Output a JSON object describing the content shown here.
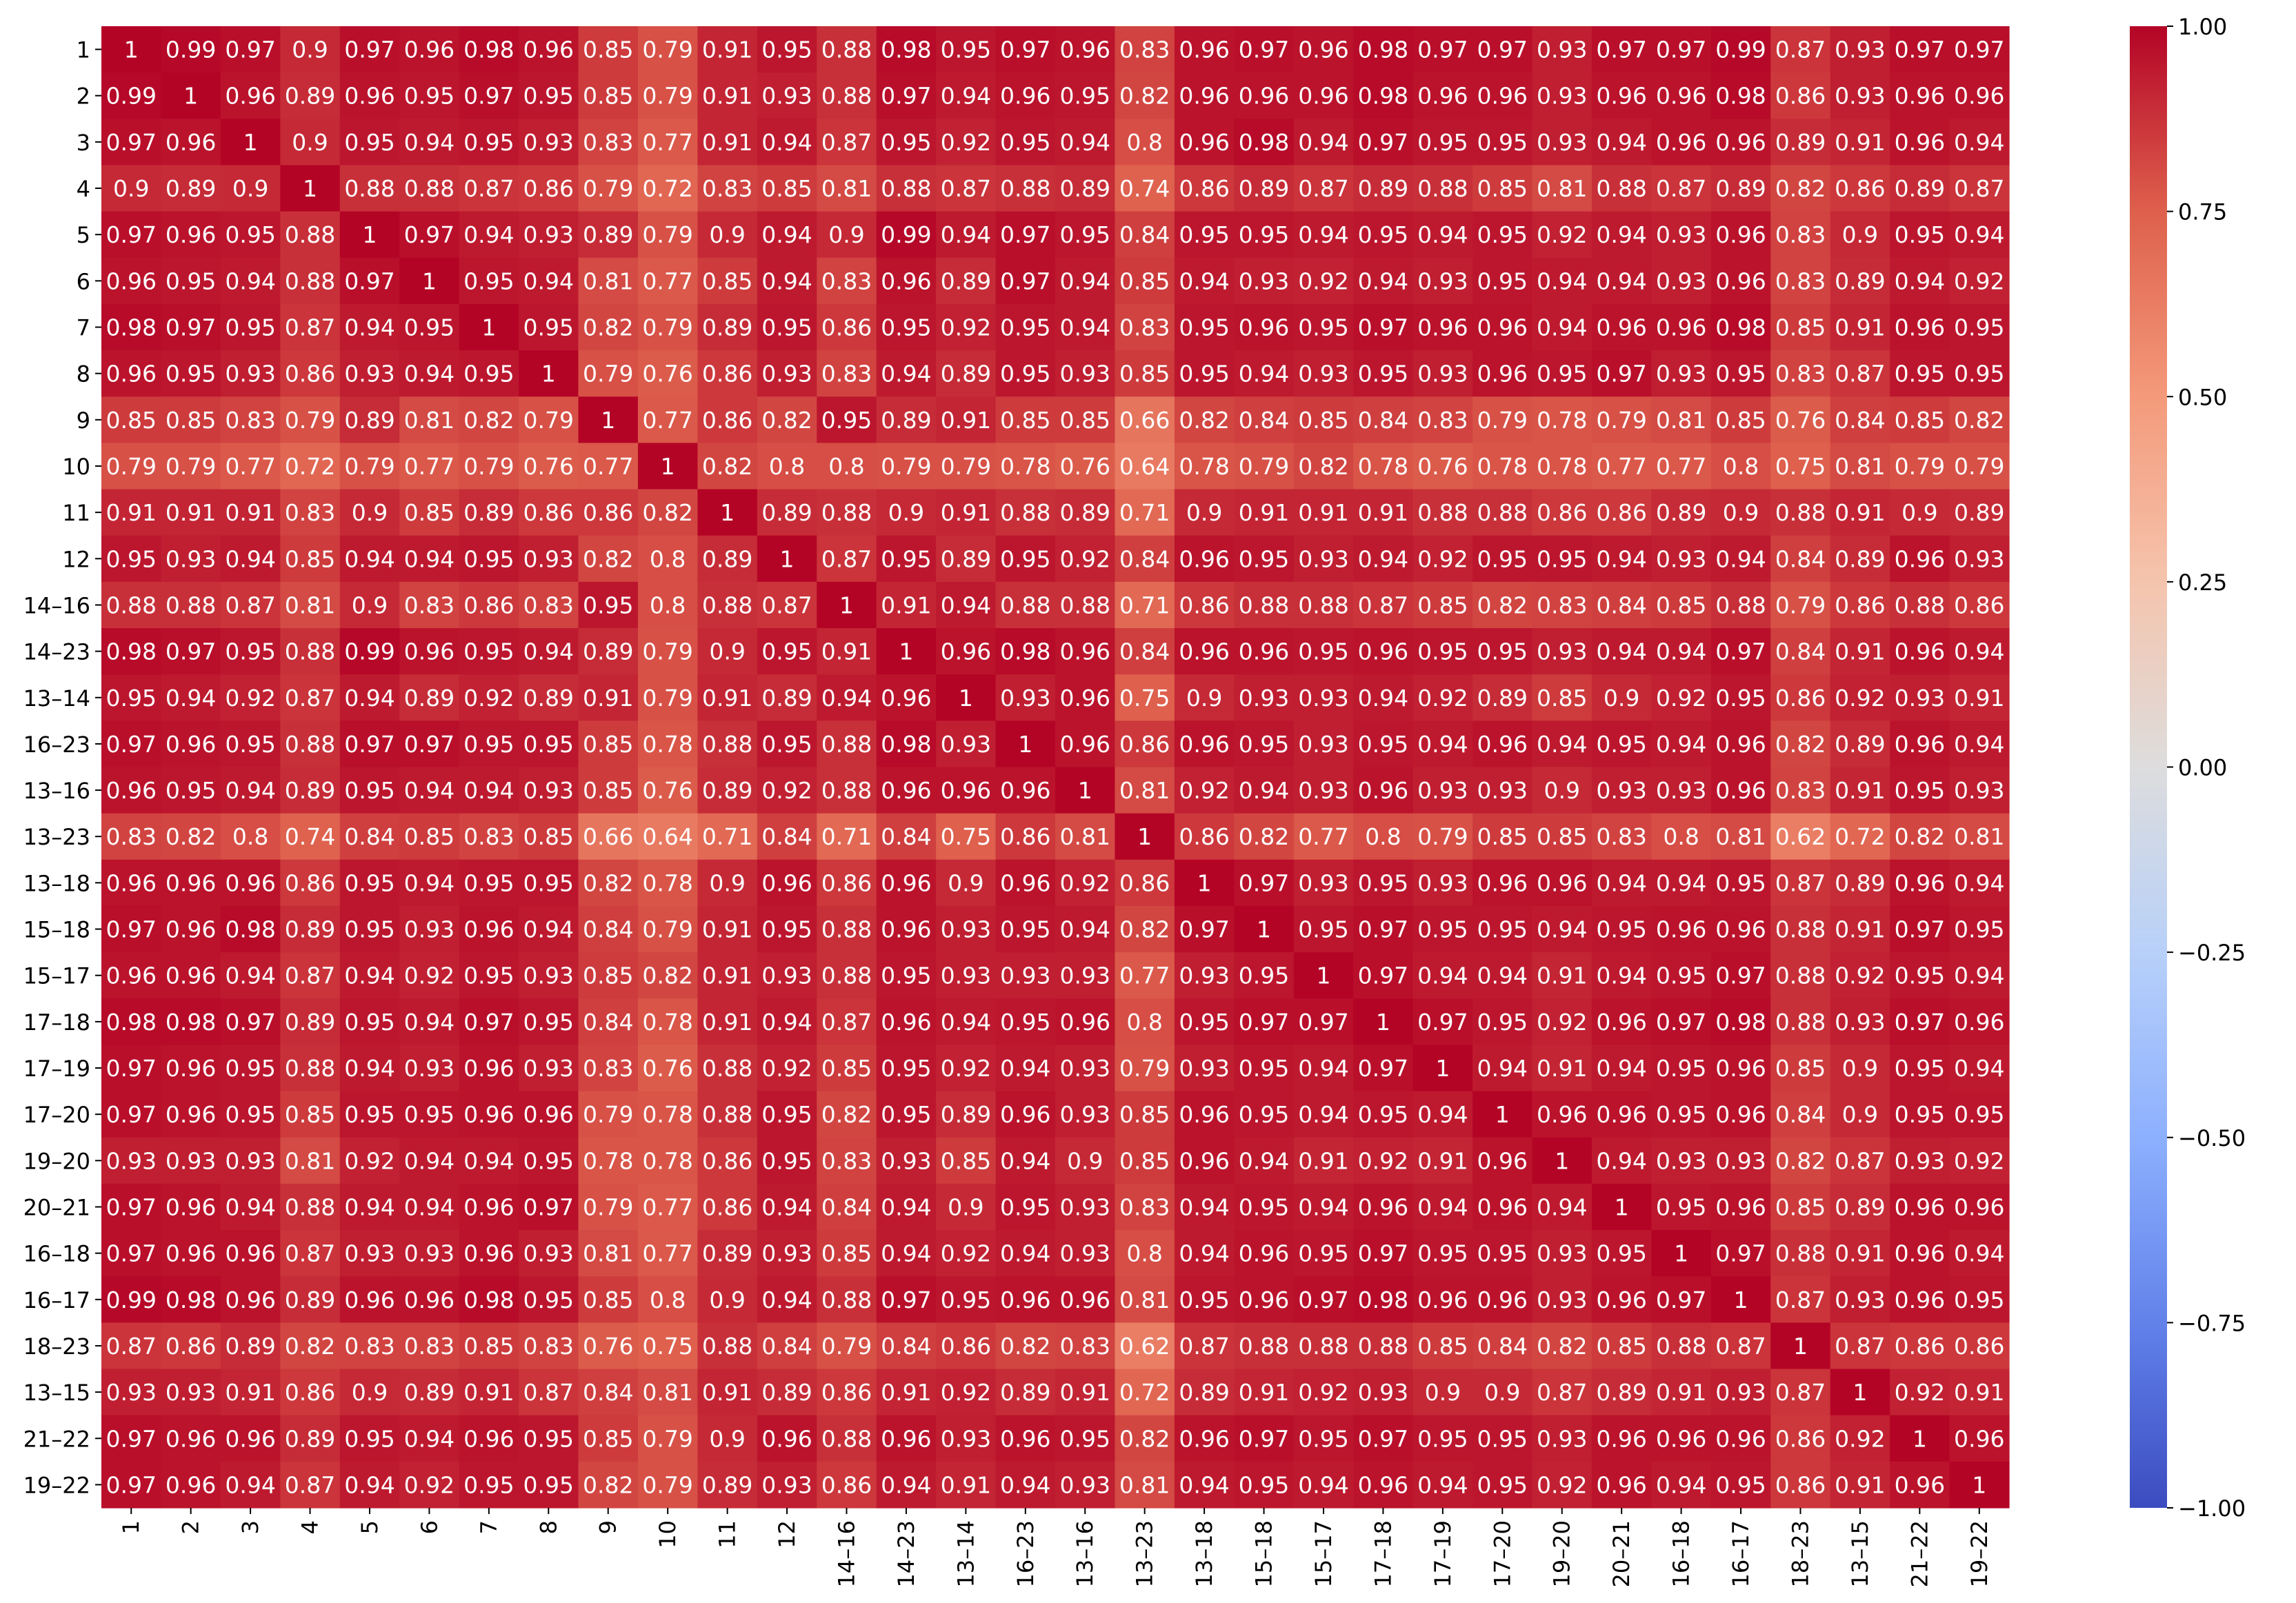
{
  "chart_data": {
    "type": "heatmap",
    "title": "",
    "xlabel": "",
    "ylabel": "",
    "colormap": "coolwarm",
    "vmin": -1,
    "vmax": 1,
    "colorbar_ticks": [
      "1.00",
      "0.75",
      "0.50",
      "0.25",
      "0.00",
      "−0.25",
      "−0.50",
      "−0.75",
      "−1.00"
    ],
    "colorbar_tick_values": [
      1,
      0.75,
      0.5,
      0.25,
      0,
      -0.25,
      -0.5,
      -0.75,
      -1
    ],
    "labels": [
      "1",
      "2",
      "3",
      "4",
      "5",
      "6",
      "7",
      "8",
      "9",
      "10",
      "11",
      "12",
      "14–16",
      "14–23",
      "13–14",
      "16–23",
      "13–16",
      "13–23",
      "13–18",
      "15–18",
      "15–17",
      "17–18",
      "17–19",
      "17–20",
      "19–20",
      "20–21",
      "16–18",
      "16–17",
      "18–23",
      "13–15",
      "21–22",
      "19–22"
    ],
    "cell_labels": [
      [
        "1",
        "0.99",
        "0.97",
        "0.9",
        "0.97",
        "0.96",
        "0.98",
        "0.96",
        "0.85",
        "0.79",
        "0.91",
        "0.95",
        "0.88",
        "0.98",
        "0.95",
        "0.97",
        "0.96",
        "0.83",
        "0.96",
        "0.97",
        "0.96",
        "0.98",
        "0.97",
        "0.97",
        "0.93",
        "0.97",
        "0.97",
        "0.99",
        "0.87",
        "0.93",
        "0.97",
        "0.97"
      ],
      [
        "0.99",
        "1",
        "0.96",
        "0.89",
        "0.96",
        "0.95",
        "0.97",
        "0.95",
        "0.85",
        "0.79",
        "0.91",
        "0.93",
        "0.88",
        "0.97",
        "0.94",
        "0.96",
        "0.95",
        "0.82",
        "0.96",
        "0.96",
        "0.96",
        "0.98",
        "0.96",
        "0.96",
        "0.93",
        "0.96",
        "0.96",
        "0.98",
        "0.86",
        "0.93",
        "0.96",
        "0.96"
      ],
      [
        "0.97",
        "0.96",
        "1",
        "0.9",
        "0.95",
        "0.94",
        "0.95",
        "0.93",
        "0.83",
        "0.77",
        "0.91",
        "0.94",
        "0.87",
        "0.95",
        "0.92",
        "0.95",
        "0.94",
        "0.8",
        "0.96",
        "0.98",
        "0.94",
        "0.97",
        "0.95",
        "0.95",
        "0.93",
        "0.94",
        "0.96",
        "0.96",
        "0.89",
        "0.91",
        "0.96",
        "0.94"
      ],
      [
        "0.9",
        "0.89",
        "0.9",
        "1",
        "0.88",
        "0.88",
        "0.87",
        "0.86",
        "0.79",
        "0.72",
        "0.83",
        "0.85",
        "0.81",
        "0.88",
        "0.87",
        "0.88",
        "0.89",
        "0.74",
        "0.86",
        "0.89",
        "0.87",
        "0.89",
        "0.88",
        "0.85",
        "0.81",
        "0.88",
        "0.87",
        "0.89",
        "0.82",
        "0.86",
        "0.89",
        "0.87"
      ],
      [
        "0.97",
        "0.96",
        "0.95",
        "0.88",
        "1",
        "0.97",
        "0.94",
        "0.93",
        "0.89",
        "0.79",
        "0.9",
        "0.94",
        "0.9",
        "0.99",
        "0.94",
        "0.97",
        "0.95",
        "0.84",
        "0.95",
        "0.95",
        "0.94",
        "0.95",
        "0.94",
        "0.95",
        "0.92",
        "0.94",
        "0.93",
        "0.96",
        "0.83",
        "0.9",
        "0.95",
        "0.94"
      ],
      [
        "0.96",
        "0.95",
        "0.94",
        "0.88",
        "0.97",
        "1",
        "0.95",
        "0.94",
        "0.81",
        "0.77",
        "0.85",
        "0.94",
        "0.83",
        "0.96",
        "0.89",
        "0.97",
        "0.94",
        "0.85",
        "0.94",
        "0.93",
        "0.92",
        "0.94",
        "0.93",
        "0.95",
        "0.94",
        "0.94",
        "0.93",
        "0.96",
        "0.83",
        "0.89",
        "0.94",
        "0.92"
      ],
      [
        "0.98",
        "0.97",
        "0.95",
        "0.87",
        "0.94",
        "0.95",
        "1",
        "0.95",
        "0.82",
        "0.79",
        "0.89",
        "0.95",
        "0.86",
        "0.95",
        "0.92",
        "0.95",
        "0.94",
        "0.83",
        "0.95",
        "0.96",
        "0.95",
        "0.97",
        "0.96",
        "0.96",
        "0.94",
        "0.96",
        "0.96",
        "0.98",
        "0.85",
        "0.91",
        "0.96",
        "0.95"
      ],
      [
        "0.96",
        "0.95",
        "0.93",
        "0.86",
        "0.93",
        "0.94",
        "0.95",
        "1",
        "0.79",
        "0.76",
        "0.86",
        "0.93",
        "0.83",
        "0.94",
        "0.89",
        "0.95",
        "0.93",
        "0.85",
        "0.95",
        "0.94",
        "0.93",
        "0.95",
        "0.93",
        "0.96",
        "0.95",
        "0.97",
        "0.93",
        "0.95",
        "0.83",
        "0.87",
        "0.95",
        "0.95"
      ],
      [
        "0.85",
        "0.85",
        "0.83",
        "0.79",
        "0.89",
        "0.81",
        "0.82",
        "0.79",
        "1",
        "0.77",
        "0.86",
        "0.82",
        "0.95",
        "0.89",
        "0.91",
        "0.85",
        "0.85",
        "0.66",
        "0.82",
        "0.84",
        "0.85",
        "0.84",
        "0.83",
        "0.79",
        "0.78",
        "0.79",
        "0.81",
        "0.85",
        "0.76",
        "0.84",
        "0.85",
        "0.82"
      ],
      [
        "0.79",
        "0.79",
        "0.77",
        "0.72",
        "0.79",
        "0.77",
        "0.79",
        "0.76",
        "0.77",
        "1",
        "0.82",
        "0.8",
        "0.8",
        "0.79",
        "0.79",
        "0.78",
        "0.76",
        "0.64",
        "0.78",
        "0.79",
        "0.82",
        "0.78",
        "0.76",
        "0.78",
        "0.78",
        "0.77",
        "0.77",
        "0.8",
        "0.75",
        "0.81",
        "0.79",
        "0.79"
      ],
      [
        "0.91",
        "0.91",
        "0.91",
        "0.83",
        "0.9",
        "0.85",
        "0.89",
        "0.86",
        "0.86",
        "0.82",
        "1",
        "0.89",
        "0.88",
        "0.9",
        "0.91",
        "0.88",
        "0.89",
        "0.71",
        "0.9",
        "0.91",
        "0.91",
        "0.91",
        "0.88",
        "0.88",
        "0.86",
        "0.86",
        "0.89",
        "0.9",
        "0.88",
        "0.91",
        "0.9",
        "0.89"
      ],
      [
        "0.95",
        "0.93",
        "0.94",
        "0.85",
        "0.94",
        "0.94",
        "0.95",
        "0.93",
        "0.82",
        "0.8",
        "0.89",
        "1",
        "0.87",
        "0.95",
        "0.89",
        "0.95",
        "0.92",
        "0.84",
        "0.96",
        "0.95",
        "0.93",
        "0.94",
        "0.92",
        "0.95",
        "0.95",
        "0.94",
        "0.93",
        "0.94",
        "0.84",
        "0.89",
        "0.96",
        "0.93"
      ],
      [
        "0.88",
        "0.88",
        "0.87",
        "0.81",
        "0.9",
        "0.83",
        "0.86",
        "0.83",
        "0.95",
        "0.8",
        "0.88",
        "0.87",
        "1",
        "0.91",
        "0.94",
        "0.88",
        "0.88",
        "0.71",
        "0.86",
        "0.88",
        "0.88",
        "0.87",
        "0.85",
        "0.82",
        "0.83",
        "0.84",
        "0.85",
        "0.88",
        "0.79",
        "0.86",
        "0.88",
        "0.86"
      ],
      [
        "0.98",
        "0.97",
        "0.95",
        "0.88",
        "0.99",
        "0.96",
        "0.95",
        "0.94",
        "0.89",
        "0.79",
        "0.9",
        "0.95",
        "0.91",
        "1",
        "0.96",
        "0.98",
        "0.96",
        "0.84",
        "0.96",
        "0.96",
        "0.95",
        "0.96",
        "0.95",
        "0.95",
        "0.93",
        "0.94",
        "0.94",
        "0.97",
        "0.84",
        "0.91",
        "0.96",
        "0.94"
      ],
      [
        "0.95",
        "0.94",
        "0.92",
        "0.87",
        "0.94",
        "0.89",
        "0.92",
        "0.89",
        "0.91",
        "0.79",
        "0.91",
        "0.89",
        "0.94",
        "0.96",
        "1",
        "0.93",
        "0.96",
        "0.75",
        "0.9",
        "0.93",
        "0.93",
        "0.94",
        "0.92",
        "0.89",
        "0.85",
        "0.9",
        "0.92",
        "0.95",
        "0.86",
        "0.92",
        "0.93",
        "0.91"
      ],
      [
        "0.97",
        "0.96",
        "0.95",
        "0.88",
        "0.97",
        "0.97",
        "0.95",
        "0.95",
        "0.85",
        "0.78",
        "0.88",
        "0.95",
        "0.88",
        "0.98",
        "0.93",
        "1",
        "0.96",
        "0.86",
        "0.96",
        "0.95",
        "0.93",
        "0.95",
        "0.94",
        "0.96",
        "0.94",
        "0.95",
        "0.94",
        "0.96",
        "0.82",
        "0.89",
        "0.96",
        "0.94"
      ],
      [
        "0.96",
        "0.95",
        "0.94",
        "0.89",
        "0.95",
        "0.94",
        "0.94",
        "0.93",
        "0.85",
        "0.76",
        "0.89",
        "0.92",
        "0.88",
        "0.96",
        "0.96",
        "0.96",
        "1",
        "0.81",
        "0.92",
        "0.94",
        "0.93",
        "0.96",
        "0.93",
        "0.93",
        "0.9",
        "0.93",
        "0.93",
        "0.96",
        "0.83",
        "0.91",
        "0.95",
        "0.93"
      ],
      [
        "0.83",
        "0.82",
        "0.8",
        "0.74",
        "0.84",
        "0.85",
        "0.83",
        "0.85",
        "0.66",
        "0.64",
        "0.71",
        "0.84",
        "0.71",
        "0.84",
        "0.75",
        "0.86",
        "0.81",
        "1",
        "0.86",
        "0.82",
        "0.77",
        "0.8",
        "0.79",
        "0.85",
        "0.85",
        "0.83",
        "0.8",
        "0.81",
        "0.62",
        "0.72",
        "0.82",
        "0.81"
      ],
      [
        "0.96",
        "0.96",
        "0.96",
        "0.86",
        "0.95",
        "0.94",
        "0.95",
        "0.95",
        "0.82",
        "0.78",
        "0.9",
        "0.96",
        "0.86",
        "0.96",
        "0.9",
        "0.96",
        "0.92",
        "0.86",
        "1",
        "0.97",
        "0.93",
        "0.95",
        "0.93",
        "0.96",
        "0.96",
        "0.94",
        "0.94",
        "0.95",
        "0.87",
        "0.89",
        "0.96",
        "0.94"
      ],
      [
        "0.97",
        "0.96",
        "0.98",
        "0.89",
        "0.95",
        "0.93",
        "0.96",
        "0.94",
        "0.84",
        "0.79",
        "0.91",
        "0.95",
        "0.88",
        "0.96",
        "0.93",
        "0.95",
        "0.94",
        "0.82",
        "0.97",
        "1",
        "0.95",
        "0.97",
        "0.95",
        "0.95",
        "0.94",
        "0.95",
        "0.96",
        "0.96",
        "0.88",
        "0.91",
        "0.97",
        "0.95"
      ],
      [
        "0.96",
        "0.96",
        "0.94",
        "0.87",
        "0.94",
        "0.92",
        "0.95",
        "0.93",
        "0.85",
        "0.82",
        "0.91",
        "0.93",
        "0.88",
        "0.95",
        "0.93",
        "0.93",
        "0.93",
        "0.77",
        "0.93",
        "0.95",
        "1",
        "0.97",
        "0.94",
        "0.94",
        "0.91",
        "0.94",
        "0.95",
        "0.97",
        "0.88",
        "0.92",
        "0.95",
        "0.94"
      ],
      [
        "0.98",
        "0.98",
        "0.97",
        "0.89",
        "0.95",
        "0.94",
        "0.97",
        "0.95",
        "0.84",
        "0.78",
        "0.91",
        "0.94",
        "0.87",
        "0.96",
        "0.94",
        "0.95",
        "0.96",
        "0.8",
        "0.95",
        "0.97",
        "0.97",
        "1",
        "0.97",
        "0.95",
        "0.92",
        "0.96",
        "0.97",
        "0.98",
        "0.88",
        "0.93",
        "0.97",
        "0.96"
      ],
      [
        "0.97",
        "0.96",
        "0.95",
        "0.88",
        "0.94",
        "0.93",
        "0.96",
        "0.93",
        "0.83",
        "0.76",
        "0.88",
        "0.92",
        "0.85",
        "0.95",
        "0.92",
        "0.94",
        "0.93",
        "0.79",
        "0.93",
        "0.95",
        "0.94",
        "0.97",
        "1",
        "0.94",
        "0.91",
        "0.94",
        "0.95",
        "0.96",
        "0.85",
        "0.9",
        "0.95",
        "0.94"
      ],
      [
        "0.97",
        "0.96",
        "0.95",
        "0.85",
        "0.95",
        "0.95",
        "0.96",
        "0.96",
        "0.79",
        "0.78",
        "0.88",
        "0.95",
        "0.82",
        "0.95",
        "0.89",
        "0.96",
        "0.93",
        "0.85",
        "0.96",
        "0.95",
        "0.94",
        "0.95",
        "0.94",
        "1",
        "0.96",
        "0.96",
        "0.95",
        "0.96",
        "0.84",
        "0.9",
        "0.95",
        "0.95"
      ],
      [
        "0.93",
        "0.93",
        "0.93",
        "0.81",
        "0.92",
        "0.94",
        "0.94",
        "0.95",
        "0.78",
        "0.78",
        "0.86",
        "0.95",
        "0.83",
        "0.93",
        "0.85",
        "0.94",
        "0.9",
        "0.85",
        "0.96",
        "0.94",
        "0.91",
        "0.92",
        "0.91",
        "0.96",
        "1",
        "0.94",
        "0.93",
        "0.93",
        "0.82",
        "0.87",
        "0.93",
        "0.92"
      ],
      [
        "0.97",
        "0.96",
        "0.94",
        "0.88",
        "0.94",
        "0.94",
        "0.96",
        "0.97",
        "0.79",
        "0.77",
        "0.86",
        "0.94",
        "0.84",
        "0.94",
        "0.9",
        "0.95",
        "0.93",
        "0.83",
        "0.94",
        "0.95",
        "0.94",
        "0.96",
        "0.94",
        "0.96",
        "0.94",
        "1",
        "0.95",
        "0.96",
        "0.85",
        "0.89",
        "0.96",
        "0.96"
      ],
      [
        "0.97",
        "0.96",
        "0.96",
        "0.87",
        "0.93",
        "0.93",
        "0.96",
        "0.93",
        "0.81",
        "0.77",
        "0.89",
        "0.93",
        "0.85",
        "0.94",
        "0.92",
        "0.94",
        "0.93",
        "0.8",
        "0.94",
        "0.96",
        "0.95",
        "0.97",
        "0.95",
        "0.95",
        "0.93",
        "0.95",
        "1",
        "0.97",
        "0.88",
        "0.91",
        "0.96",
        "0.94"
      ],
      [
        "0.99",
        "0.98",
        "0.96",
        "0.89",
        "0.96",
        "0.96",
        "0.98",
        "0.95",
        "0.85",
        "0.8",
        "0.9",
        "0.94",
        "0.88",
        "0.97",
        "0.95",
        "0.96",
        "0.96",
        "0.81",
        "0.95",
        "0.96",
        "0.97",
        "0.98",
        "0.96",
        "0.96",
        "0.93",
        "0.96",
        "0.97",
        "1",
        "0.87",
        "0.93",
        "0.96",
        "0.95"
      ],
      [
        "0.87",
        "0.86",
        "0.89",
        "0.82",
        "0.83",
        "0.83",
        "0.85",
        "0.83",
        "0.76",
        "0.75",
        "0.88",
        "0.84",
        "0.79",
        "0.84",
        "0.86",
        "0.82",
        "0.83",
        "0.62",
        "0.87",
        "0.88",
        "0.88",
        "0.88",
        "0.85",
        "0.84",
        "0.82",
        "0.85",
        "0.88",
        "0.87",
        "1",
        "0.87",
        "0.86",
        "0.86"
      ],
      [
        "0.93",
        "0.93",
        "0.91",
        "0.86",
        "0.9",
        "0.89",
        "0.91",
        "0.87",
        "0.84",
        "0.81",
        "0.91",
        "0.89",
        "0.86",
        "0.91",
        "0.92",
        "0.89",
        "0.91",
        "0.72",
        "0.89",
        "0.91",
        "0.92",
        "0.93",
        "0.9",
        "0.9",
        "0.87",
        "0.89",
        "0.91",
        "0.93",
        "0.87",
        "1",
        "0.92",
        "0.91"
      ],
      [
        "0.97",
        "0.96",
        "0.96",
        "0.89",
        "0.95",
        "0.94",
        "0.96",
        "0.95",
        "0.85",
        "0.79",
        "0.9",
        "0.96",
        "0.88",
        "0.96",
        "0.93",
        "0.96",
        "0.95",
        "0.82",
        "0.96",
        "0.97",
        "0.95",
        "0.97",
        "0.95",
        "0.95",
        "0.93",
        "0.96",
        "0.96",
        "0.96",
        "0.86",
        "0.92",
        "1",
        "0.96"
      ],
      [
        "0.97",
        "0.96",
        "0.94",
        "0.87",
        "0.94",
        "0.92",
        "0.95",
        "0.95",
        "0.82",
        "0.79",
        "0.89",
        "0.93",
        "0.86",
        "0.94",
        "0.91",
        "0.94",
        "0.93",
        "0.81",
        "0.94",
        "0.95",
        "0.94",
        "0.96",
        "0.94",
        "0.95",
        "0.92",
        "0.96",
        "0.94",
        "0.95",
        "0.86",
        "0.91",
        "0.96",
        "1"
      ]
    ],
    "grid": false,
    "legend": "colorbar-right"
  }
}
